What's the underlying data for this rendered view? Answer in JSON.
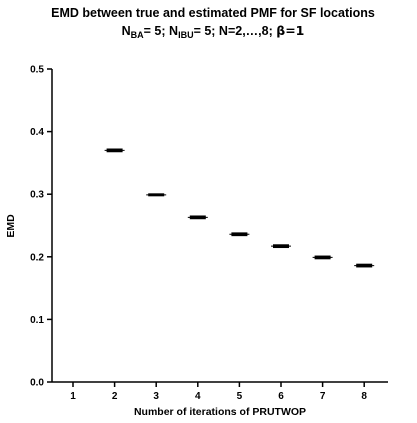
{
  "chart_data": {
    "type": "box",
    "title": "EMD between true and estimated PMF for SF locations",
    "subtitle": {
      "n_ba_label": "N",
      "n_ba_sub": "BA",
      "n_ba_value": "= 5; ",
      "n_ibu_label": "N",
      "n_ibu_sub": "IBU",
      "n_ibu_value": "= 5; N=2,…,8; ",
      "beta_text": "β=1"
    },
    "xlabel": "Number of iterations of PRUTWOP",
    "ylabel": "EMD",
    "x_ticks": [
      "1",
      "2",
      "3",
      "4",
      "5",
      "6",
      "7",
      "8"
    ],
    "y_ticks": [
      "0.0",
      "0.1",
      "0.2",
      "0.3",
      "0.4",
      "0.5"
    ],
    "ylim": [
      0,
      0.5
    ],
    "x": [
      2,
      3,
      4,
      5,
      6,
      7,
      8
    ],
    "values": [
      0.37,
      0.299,
      0.263,
      0.236,
      0.217,
      0.199,
      0.186
    ],
    "spread": [
      0.003,
      0.002,
      0.003,
      0.003,
      0.003,
      0.003,
      0.003
    ],
    "grid": false,
    "color": "#000000"
  }
}
